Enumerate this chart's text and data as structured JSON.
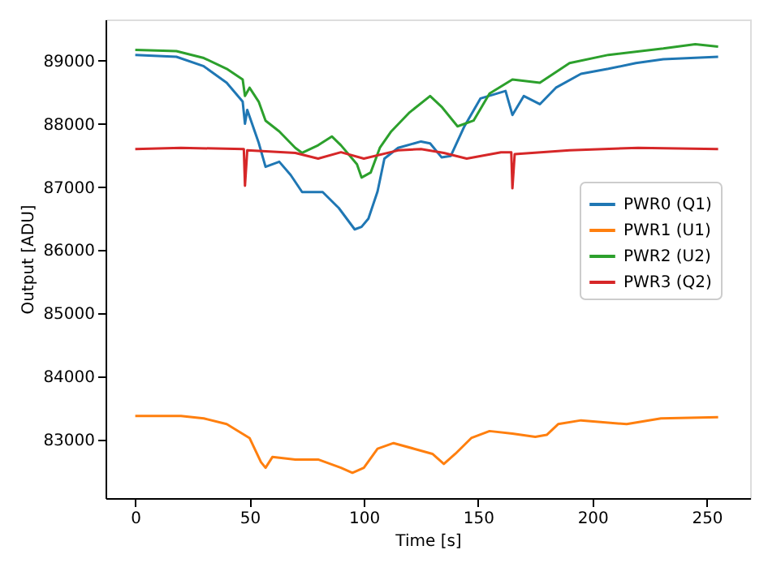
{
  "chart_data": {
    "type": "line",
    "xlabel": "Time [s]",
    "ylabel": "Output [ADU]",
    "xlim": [
      -13,
      269
    ],
    "ylim": [
      82080,
      89650
    ],
    "xticks": [
      0,
      50,
      100,
      150,
      200,
      250
    ],
    "yticks": [
      83000,
      84000,
      85000,
      86000,
      87000,
      88000,
      89000
    ],
    "grid": false,
    "legend": "right",
    "marker": "none",
    "line_style": "solid",
    "series": [
      {
        "name": "PWR0 (Q1)",
        "color": "#1f77b4",
        "x": [
          0,
          18,
          30,
          40,
          47,
          48,
          49,
          54,
          57,
          63,
          68,
          73,
          82,
          89,
          96,
          99,
          102,
          106,
          109,
          115,
          125,
          129,
          134,
          138,
          144,
          151,
          162,
          165,
          170,
          177,
          184,
          195,
          207,
          219,
          231,
          243,
          255
        ],
        "values": [
          89090,
          89060,
          88910,
          88650,
          88350,
          88000,
          88220,
          87700,
          87320,
          87400,
          87190,
          86920,
          86920,
          86670,
          86330,
          86370,
          86500,
          86930,
          87450,
          87620,
          87720,
          87690,
          87470,
          87490,
          87960,
          88400,
          88520,
          88140,
          88440,
          88310,
          88570,
          88790,
          88870,
          88960,
          89020,
          89040,
          89060
        ]
      },
      {
        "name": "PWR1 (U1)",
        "color": "#ff7f0e",
        "x": [
          0,
          20,
          30,
          40,
          50,
          55,
          57,
          60,
          70,
          80,
          90,
          95,
          100,
          106,
          113,
          122,
          130,
          135,
          140,
          147,
          155,
          165,
          175,
          180,
          185,
          195,
          215,
          230,
          255
        ],
        "values": [
          83380,
          83380,
          83340,
          83250,
          83030,
          82650,
          82560,
          82730,
          82690,
          82690,
          82560,
          82480,
          82560,
          82860,
          82950,
          82860,
          82780,
          82620,
          82780,
          83030,
          83140,
          83100,
          83050,
          83080,
          83250,
          83310,
          83250,
          83340,
          83360
        ]
      },
      {
        "name": "PWR2 (U2)",
        "color": "#2ca02c",
        "x": [
          0,
          18,
          30,
          40,
          47,
          48,
          50,
          54,
          57,
          63,
          70,
          73,
          80,
          86,
          90,
          97,
          99,
          103,
          107,
          112,
          120,
          129,
          134,
          141,
          148,
          155,
          165,
          177,
          190,
          207,
          231,
          245,
          255
        ],
        "values": [
          89170,
          89150,
          89040,
          88870,
          88700,
          88440,
          88570,
          88350,
          88050,
          87880,
          87620,
          87540,
          87660,
          87800,
          87660,
          87360,
          87150,
          87230,
          87620,
          87880,
          88180,
          88440,
          88270,
          87960,
          88050,
          88480,
          88700,
          88650,
          88960,
          89090,
          89190,
          89260,
          89220
        ]
      },
      {
        "name": "PWR3 (Q2)",
        "color": "#d62728",
        "x": [
          0,
          20,
          47.5,
          48,
          49,
          70,
          80,
          90,
          100,
          115,
          125,
          135,
          145,
          160,
          164.5,
          165,
          166,
          190,
          220,
          255
        ],
        "values": [
          87600,
          87620,
          87600,
          87020,
          87580,
          87540,
          87450,
          87550,
          87450,
          87580,
          87600,
          87540,
          87450,
          87550,
          87550,
          86980,
          87520,
          87580,
          87620,
          87600
        ]
      }
    ]
  }
}
